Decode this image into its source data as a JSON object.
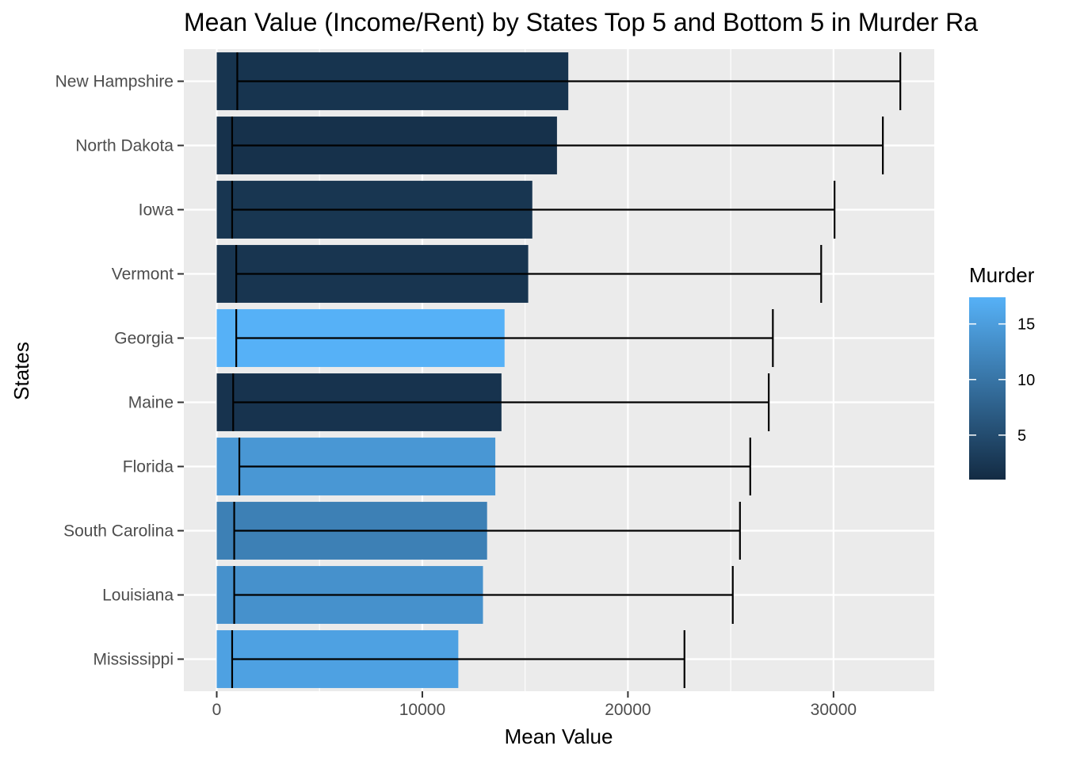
{
  "chart_data": {
    "type": "bar",
    "orientation": "horizontal",
    "title": "Mean Value (Income/Rent) by States Top 5 and Bottom 5 in Murder Ra",
    "xlabel": "Mean Value",
    "ylabel": "States",
    "xlim": [
      -1600,
      34900
    ],
    "x_ticks": [
      0,
      10000,
      20000,
      30000
    ],
    "x_tick_labels": [
      "0",
      "10000",
      "20000",
      "30000"
    ],
    "grid": true,
    "categories": [
      "New Hampshire",
      "North Dakota",
      "Iowa",
      "Vermont",
      "Georgia",
      "Maine",
      "Florida",
      "South Carolina",
      "Louisiana",
      "Mississippi"
    ],
    "values": [
      17100,
      16550,
      15350,
      15150,
      14000,
      13850,
      13550,
      13150,
      12950,
      11750
    ],
    "error_low": [
      1000,
      750,
      750,
      950,
      950,
      800,
      1100,
      850,
      850,
      750
    ],
    "error_high": [
      33250,
      32400,
      30050,
      29400,
      27050,
      26850,
      25950,
      25450,
      25100,
      22750
    ],
    "murder": [
      2.1,
      1.7,
      2.3,
      2.2,
      17.4,
      2.0,
      14.2,
      11.4,
      13.5,
      15.5
    ],
    "legend": {
      "title": "Murder",
      "position": "right",
      "ticks": [
        5,
        10,
        15
      ],
      "tick_labels": [
        "5",
        "10",
        "15"
      ],
      "range": [
        1.0,
        17.4
      ],
      "color_low": "#132B43",
      "color_high": "#56B1F7"
    },
    "colors": {
      "panel_background": "#EBEBEB",
      "grid": "#FFFFFF",
      "error_bar": "#000000"
    }
  }
}
